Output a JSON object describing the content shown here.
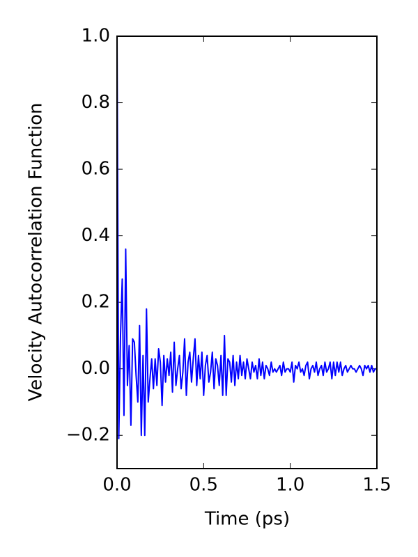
{
  "chart_data": {
    "type": "line",
    "xlabel": "Time (ps)",
    "ylabel": "Velocity Autocorrelation Function",
    "xlim": [
      0,
      1.5
    ],
    "ylim": [
      -0.3,
      1.0
    ],
    "xticks": [
      {
        "value": 0,
        "label": "0.0"
      },
      0.5,
      {
        "value": 1,
        "label": "1.0"
      },
      1.5
    ],
    "yticks": [
      {
        "value": -0.2,
        "label": "−0.2"
      },
      {
        "value": 0,
        "label": "0.0"
      },
      0.2,
      0.4,
      0.6,
      0.8,
      {
        "value": 1,
        "label": "1.0"
      }
    ],
    "x": [
      0,
      0.01,
      0.02,
      0.03,
      0.04,
      0.05,
      0.06,
      0.07,
      0.08,
      0.09,
      0.1,
      0.11,
      0.12,
      0.13,
      0.14,
      0.15,
      0.16,
      0.17,
      0.18,
      0.19,
      0.2,
      0.21,
      0.22,
      0.23,
      0.24,
      0.25,
      0.26,
      0.27,
      0.28,
      0.29,
      0.3,
      0.31,
      0.32,
      0.33,
      0.34,
      0.35,
      0.36,
      0.37,
      0.38,
      0.39,
      0.4,
      0.41,
      0.42,
      0.43,
      0.44,
      0.45,
      0.46,
      0.47,
      0.48,
      0.49,
      0.5,
      0.51,
      0.52,
      0.53,
      0.54,
      0.55,
      0.56,
      0.57,
      0.58,
      0.59,
      0.6,
      0.61,
      0.62,
      0.63,
      0.64,
      0.65,
      0.66,
      0.67,
      0.68,
      0.69,
      0.7,
      0.71,
      0.72,
      0.73,
      0.74,
      0.75,
      0.76,
      0.77,
      0.78,
      0.79,
      0.8,
      0.81,
      0.82,
      0.83,
      0.84,
      0.85,
      0.86,
      0.87,
      0.88,
      0.89,
      0.9,
      0.91,
      0.92,
      0.93,
      0.94,
      0.95,
      0.96,
      0.97,
      0.98,
      0.99,
      1,
      1.01,
      1.02,
      1.03,
      1.04,
      1.05,
      1.06,
      1.07,
      1.08,
      1.09,
      1.1,
      1.11,
      1.12,
      1.13,
      1.14,
      1.15,
      1.16,
      1.17,
      1.18,
      1.19,
      1.2,
      1.21,
      1.22,
      1.23,
      1.24,
      1.25,
      1.26,
      1.27,
      1.28,
      1.29,
      1.3,
      1.31,
      1.32,
      1.33,
      1.34,
      1.35,
      1.36,
      1.37,
      1.38,
      1.39,
      1.4,
      1.41,
      1.42,
      1.43,
      1.44,
      1.45,
      1.46,
      1.47,
      1.48,
      1.49,
      1.5
    ],
    "series": [
      {
        "color": "#0000ff",
        "values": [
          1.0,
          -0.21,
          0.1,
          0.27,
          -0.14,
          0.36,
          -0.05,
          0.07,
          -0.17,
          0.09,
          0.08,
          -0.02,
          -0.1,
          0.13,
          -0.2,
          0.04,
          -0.2,
          0.18,
          -0.1,
          -0.03,
          0.03,
          -0.06,
          0.03,
          -0.05,
          0.06,
          0.02,
          -0.11,
          0.04,
          -0.04,
          0.03,
          -0.02,
          0.05,
          -0.07,
          0.08,
          -0.05,
          0.0,
          0.04,
          -0.06,
          -0.01,
          0.09,
          -0.08,
          0.02,
          0.05,
          -0.04,
          0.03,
          0.09,
          -0.05,
          0.04,
          -0.03,
          0.05,
          -0.08,
          0.01,
          0.04,
          -0.04,
          -0.01,
          0.05,
          -0.06,
          0.03,
          0.01,
          -0.05,
          0.04,
          -0.08,
          0.1,
          -0.08,
          0.03,
          0.02,
          -0.04,
          0.04,
          -0.05,
          0.02,
          -0.03,
          0.04,
          -0.02,
          0.02,
          -0.03,
          0.03,
          0.0,
          -0.03,
          0.02,
          -0.01,
          0.01,
          -0.03,
          0.03,
          -0.02,
          0.02,
          -0.03,
          0.01,
          0.0,
          -0.02,
          0.02,
          -0.01,
          0.0,
          -0.01,
          0.0,
          0.01,
          -0.02,
          0.02,
          -0.01,
          0.0,
          0.0,
          -0.01,
          0.02,
          -0.04,
          0.01,
          0.0,
          0.02,
          -0.01,
          0.0,
          -0.02,
          0.01,
          0.02,
          -0.03,
          0.0,
          0.01,
          -0.01,
          0.02,
          -0.02,
          0.0,
          0.01,
          -0.02,
          0.02,
          -0.01,
          0.0,
          0.02,
          -0.03,
          0.02,
          -0.02,
          0.02,
          -0.01,
          0.02,
          -0.02,
          0.0,
          0.01,
          -0.01,
          0.0,
          0.01,
          0.0,
          0.0,
          -0.01,
          0.0,
          0.01,
          0.0,
          -0.02,
          0.01,
          0.0,
          0.01,
          -0.01,
          0.01,
          -0.01,
          0.0,
          0.0
        ]
      }
    ]
  }
}
